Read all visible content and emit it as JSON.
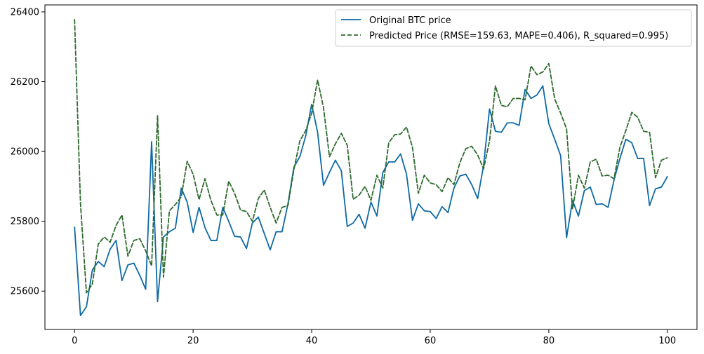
{
  "chart_data": {
    "type": "line",
    "title": "",
    "xlabel": "",
    "ylabel": "",
    "xlim": [
      -5,
      105
    ],
    "ylim": [
      25490,
      26420
    ],
    "grid": false,
    "legend_placement": "top-right",
    "x_ticks": [
      0,
      20,
      40,
      60,
      80,
      100
    ],
    "x_tick_labels": [
      "0",
      "20",
      "40",
      "60",
      "80",
      "100"
    ],
    "y_ticks": [
      25600,
      25800,
      26000,
      26200,
      26400
    ],
    "y_tick_labels": [
      "25600",
      "25800",
      "26000",
      "26200",
      "26400"
    ],
    "x": [
      0,
      1,
      2,
      3,
      4,
      5,
      6,
      7,
      8,
      9,
      10,
      11,
      12,
      13,
      14,
      15,
      16,
      17,
      18,
      19,
      20,
      21,
      22,
      23,
      24,
      25,
      26,
      27,
      28,
      29,
      30,
      31,
      32,
      33,
      34,
      35,
      36,
      37,
      38,
      39,
      40,
      41,
      42,
      43,
      44,
      45,
      46,
      47,
      48,
      49,
      50,
      51,
      52,
      53,
      54,
      55,
      56,
      57,
      58,
      59,
      60,
      61,
      62,
      63,
      64,
      65,
      66,
      67,
      68,
      69,
      70,
      71,
      72,
      73,
      74,
      75,
      76,
      77,
      78,
      79,
      80,
      81,
      82,
      83,
      84,
      85,
      86,
      87,
      88,
      89,
      90,
      91,
      92,
      93,
      94,
      95,
      96,
      97,
      98,
      99,
      100
    ],
    "series": [
      {
        "name": "Original BTC price",
        "color": "#0d6aa6",
        "style": "solid",
        "values": [
          25783,
          25530,
          25555,
          25660,
          25685,
          25670,
          25720,
          25745,
          25630,
          25675,
          25680,
          25645,
          25605,
          26028,
          25570,
          25755,
          25770,
          25780,
          25895,
          25855,
          25768,
          25840,
          25782,
          25745,
          25745,
          25840,
          25800,
          25757,
          25755,
          25722,
          25795,
          25812,
          25765,
          25718,
          25770,
          25770,
          25850,
          25955,
          25985,
          26045,
          26135,
          26055,
          25903,
          25940,
          25975,
          25945,
          25785,
          25795,
          25820,
          25780,
          25855,
          25815,
          25940,
          25970,
          25970,
          25993,
          25935,
          25803,
          25850,
          25830,
          25828,
          25808,
          25842,
          25825,
          25895,
          25930,
          25935,
          25905,
          25865,
          25960,
          26122,
          26058,
          26055,
          26082,
          26082,
          26075,
          26178,
          26152,
          26162,
          26188,
          26080,
          26035,
          25988,
          25753,
          25860,
          25815,
          25888,
          25898,
          25848,
          25850,
          25840,
          25918,
          25980,
          26035,
          26025,
          25980,
          25980,
          25845,
          25893,
          25898,
          25928
        ]
      },
      {
        "name": "Predicted Price (RMSE=159.63, MAPE=0.406), R_squared=0.995)",
        "color": "#2d6a2d",
        "style": "dashed",
        "values": [
          26378,
          25850,
          25595,
          25620,
          25735,
          25755,
          25740,
          25788,
          25818,
          25700,
          25745,
          25750,
          25715,
          25672,
          26103,
          25640,
          25830,
          25848,
          25870,
          25972,
          25935,
          25862,
          25922,
          25860,
          25818,
          25818,
          25915,
          25880,
          25832,
          25828,
          25800,
          25865,
          25890,
          25840,
          25795,
          25840,
          25845,
          25948,
          26030,
          26060,
          26110,
          26205,
          26125,
          25985,
          26022,
          26052,
          26018,
          25863,
          25875,
          25900,
          25860,
          25932,
          25895,
          26025,
          26048,
          26050,
          26070,
          26012,
          25880,
          25932,
          25910,
          25905,
          25885,
          25925,
          25905,
          25968,
          26008,
          26015,
          25990,
          25950,
          26030,
          26188,
          26132,
          26128,
          26152,
          26152,
          26148,
          26245,
          26220,
          26228,
          26252,
          26150,
          26110,
          26065,
          25835,
          25932,
          25895,
          25970,
          25978,
          25930,
          25932,
          25922,
          26012,
          26060,
          26112,
          26098,
          26058,
          26055,
          25925,
          25975,
          25982
        ]
      }
    ]
  }
}
